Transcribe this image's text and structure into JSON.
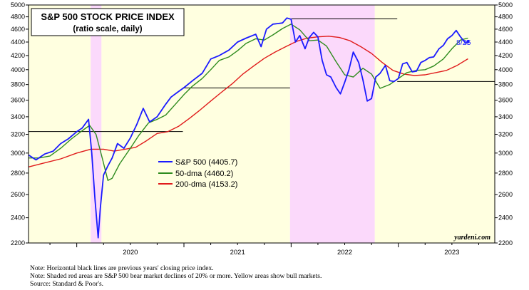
{
  "chart_data": {
    "type": "line",
    "title": "S&P 500 STOCK PRICE INDEX",
    "subtitle": "(ratio scale, daily)",
    "scale": "log",
    "ylim": [
      2200,
      5000
    ],
    "yticks": [
      2200,
      2400,
      2600,
      2800,
      3000,
      3200,
      3400,
      3600,
      3800,
      4000,
      4200,
      4400,
      4600,
      4800,
      5000
    ],
    "xlim": [
      2019.55,
      2023.9
    ],
    "xticks": [
      2020,
      2021,
      2022,
      2023
    ],
    "x_tick_labels": [
      "2020",
      "2021",
      "2022",
      "2023"
    ],
    "latest_date_label": "8/25",
    "watermark": "yardeni.com",
    "legend": [
      {
        "name": "S&P 500 (4405.7)",
        "color": "#1a1aff"
      },
      {
        "name": "50-dma (4460.2)",
        "color": "#2e8b1e"
      },
      {
        "name": "200-dma (4153.2)",
        "color": "#e01b1b"
      }
    ],
    "bull_market_periods": [
      [
        2019.55,
        2020.13
      ],
      [
        2020.23,
        2021.99
      ],
      [
        2022.78,
        2023.9
      ]
    ],
    "bear_market_periods": [
      [
        2020.13,
        2020.23
      ],
      [
        2021.99,
        2022.78
      ]
    ],
    "prev_year_close_lines": [
      {
        "value": 3231,
        "x_start": 2019.55,
        "x_end": 2020.99
      },
      {
        "value": 3756,
        "x_start": 2020.99,
        "x_end": 2021.99
      },
      {
        "value": 4766,
        "x_start": 2021.99,
        "x_end": 2022.99
      },
      {
        "value": 3840,
        "x_start": 2022.99,
        "x_end": 2023.9
      }
    ],
    "series": [
      {
        "name": "S&P 500",
        "color": "#1a1aff",
        "x": [
          2019.55,
          2019.62,
          2019.7,
          2019.78,
          2019.85,
          2019.92,
          2020.0,
          2020.05,
          2020.11,
          2020.14,
          2020.17,
          2020.2,
          2020.22,
          2020.25,
          2020.29,
          2020.33,
          2020.38,
          2020.44,
          2020.5,
          2020.56,
          2020.62,
          2020.68,
          2020.75,
          2020.83,
          2020.88,
          2020.94,
          2021.0,
          2021.08,
          2021.17,
          2021.25,
          2021.33,
          2021.42,
          2021.5,
          2021.58,
          2021.67,
          2021.72,
          2021.77,
          2021.83,
          2021.88,
          2021.92,
          2021.96,
          2022.0,
          2022.04,
          2022.08,
          2022.13,
          2022.17,
          2022.21,
          2022.25,
          2022.29,
          2022.33,
          2022.37,
          2022.42,
          2022.46,
          2022.5,
          2022.54,
          2022.58,
          2022.63,
          2022.67,
          2022.71,
          2022.75,
          2022.79,
          2022.83,
          2022.88,
          2022.92,
          2022.96,
          2023.0,
          2023.04,
          2023.08,
          2023.13,
          2023.17,
          2023.21,
          2023.25,
          2023.29,
          2023.33,
          2023.38,
          2023.42,
          2023.46,
          2023.5,
          2023.54,
          2023.58,
          2023.63,
          2023.65
        ],
        "values": [
          2980,
          2930,
          2990,
          3020,
          3100,
          3150,
          3230,
          3270,
          3370,
          3000,
          2560,
          2240,
          2480,
          2780,
          2870,
          2950,
          3100,
          3050,
          3160,
          3310,
          3500,
          3340,
          3400,
          3550,
          3640,
          3700,
          3760,
          3850,
          3950,
          4150,
          4200,
          4280,
          4400,
          4460,
          4520,
          4330,
          4600,
          4680,
          4690,
          4700,
          4780,
          4760,
          4400,
          4500,
          4300,
          4470,
          4550,
          4480,
          4130,
          3930,
          3900,
          3760,
          3680,
          3830,
          4000,
          4250,
          4100,
          3860,
          3590,
          3620,
          3900,
          3950,
          4060,
          3850,
          3840,
          3880,
          4080,
          4100,
          3970,
          3980,
          4100,
          4130,
          4170,
          4180,
          4300,
          4350,
          4450,
          4500,
          4580,
          4480,
          4380,
          4405.7
        ]
      },
      {
        "name": "50-dma",
        "color": "#2e8b1e",
        "x": [
          2019.55,
          2019.65,
          2019.75,
          2019.85,
          2019.95,
          2020.05,
          2020.12,
          2020.18,
          2020.24,
          2020.29,
          2020.33,
          2020.4,
          2020.5,
          2020.58,
          2020.67,
          2020.75,
          2020.83,
          2020.92,
          2021.0,
          2021.08,
          2021.17,
          2021.25,
          2021.33,
          2021.42,
          2021.5,
          2021.58,
          2021.67,
          2021.75,
          2021.83,
          2021.92,
          2022.0,
          2022.08,
          2022.17,
          2022.25,
          2022.33,
          2022.42,
          2022.5,
          2022.58,
          2022.67,
          2022.75,
          2022.83,
          2022.92,
          2023.0,
          2023.08,
          2023.17,
          2023.25,
          2023.33,
          2023.42,
          2023.5,
          2023.58,
          2023.65
        ],
        "values": [
          2950,
          2950,
          2970,
          3050,
          3150,
          3240,
          3300,
          3200,
          2940,
          2730,
          2750,
          2890,
          3050,
          3190,
          3330,
          3370,
          3420,
          3550,
          3670,
          3780,
          3880,
          4000,
          4130,
          4180,
          4270,
          4380,
          4450,
          4430,
          4510,
          4610,
          4680,
          4590,
          4420,
          4430,
          4340,
          4110,
          3930,
          3900,
          4020,
          3940,
          3750,
          3800,
          3880,
          3960,
          3990,
          4000,
          4050,
          4150,
          4300,
          4430,
          4460.2
        ]
      },
      {
        "name": "200-dma",
        "color": "#e01b1b",
        "x": [
          2019.55,
          2019.7,
          2019.85,
          2020.0,
          2020.13,
          2020.25,
          2020.35,
          2020.45,
          2020.55,
          2020.65,
          2020.75,
          2020.85,
          2020.95,
          2021.05,
          2021.15,
          2021.25,
          2021.35,
          2021.45,
          2021.55,
          2021.65,
          2021.75,
          2021.85,
          2021.95,
          2022.05,
          2022.15,
          2022.25,
          2022.35,
          2022.45,
          2022.55,
          2022.65,
          2022.75,
          2022.85,
          2022.95,
          2023.05,
          2023.15,
          2023.25,
          2023.35,
          2023.45,
          2023.55,
          2023.65
        ],
        "values": [
          2860,
          2900,
          2940,
          3000,
          3040,
          3040,
          3020,
          3040,
          3060,
          3130,
          3210,
          3230,
          3290,
          3380,
          3480,
          3590,
          3700,
          3810,
          3940,
          4050,
          4160,
          4250,
          4330,
          4410,
          4460,
          4480,
          4490,
          4470,
          4420,
          4330,
          4230,
          4100,
          3990,
          3940,
          3920,
          3930,
          3960,
          3990,
          4060,
          4153.2
        ]
      }
    ]
  },
  "notes": [
    "Note: Horizontal black lines are previous years' closing price index.",
    "Note: Shaded red areas are S&P 500 bear market declines of 20% or more. Yellow areas show bull markets.",
    "Source: Standard & Poor's."
  ]
}
